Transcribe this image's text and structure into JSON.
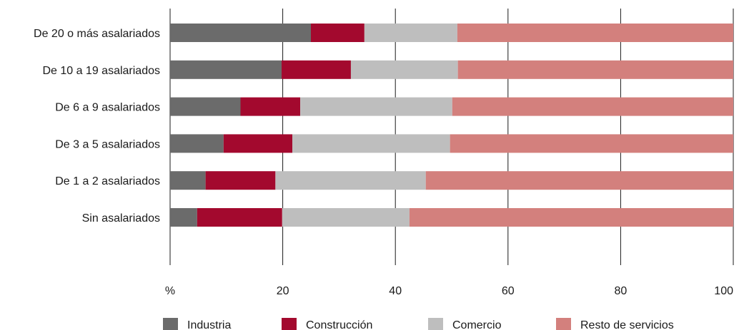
{
  "chart_data": {
    "type": "bar",
    "orientation": "horizontal",
    "stacked": true,
    "categories": [
      "De 20 o más asalariados",
      "De 10 a 19 asalariados",
      "De 6 a 9 asalariados",
      "De 3 a 5 asalariados",
      "De 1 a 2 asalariados",
      "Sin asalariados"
    ],
    "series": [
      {
        "name": "Industria",
        "color": "#6b6b6b",
        "values": [
          25.0,
          19.8,
          12.5,
          9.5,
          6.3,
          4.8
        ]
      },
      {
        "name": "Construcción",
        "color": "#a3092e",
        "values": [
          9.5,
          12.3,
          10.6,
          12.2,
          12.4,
          15.1
        ]
      },
      {
        "name": "Comercio",
        "color": "#bebebe",
        "values": [
          16.5,
          19.0,
          27.0,
          28.0,
          26.7,
          22.6
        ]
      },
      {
        "name": "Resto de servicios",
        "color": "#d3807d",
        "values": [
          49.0,
          48.9,
          49.9,
          50.3,
          54.6,
          57.5
        ]
      }
    ],
    "xlabel": "%",
    "xlim": [
      0,
      100
    ],
    "xticks": [
      20,
      40,
      60,
      80,
      100
    ],
    "grid": "vertical",
    "legend_position": "bottom"
  }
}
